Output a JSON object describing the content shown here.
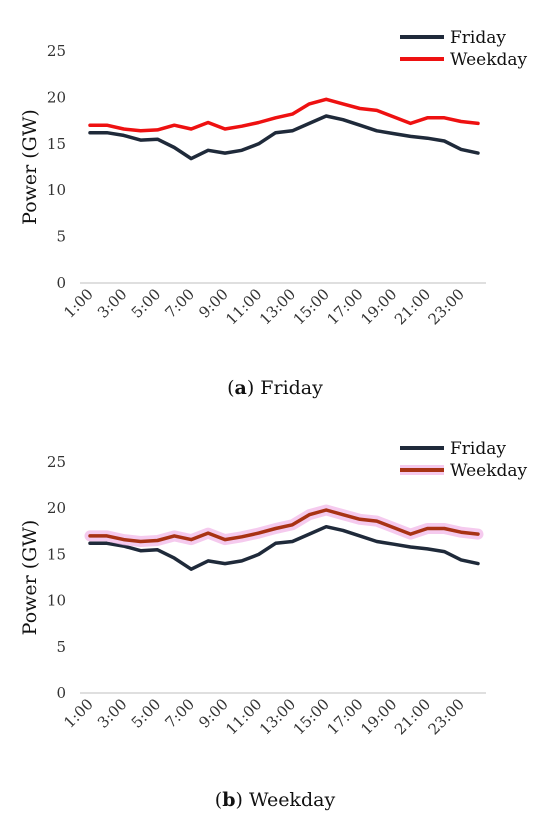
{
  "chart_data": [
    {
      "type": "line",
      "caption_letter": "a",
      "caption_text": "Friday",
      "ylabel": "Power (GW)",
      "ylim": [
        0,
        25
      ],
      "yticks": [
        0,
        5,
        10,
        15,
        20,
        25
      ],
      "grid": false,
      "legend": "top-right",
      "x": [
        "1:00",
        "2:00",
        "3:00",
        "4:00",
        "5:00",
        "6:00",
        "7:00",
        "8:00",
        "9:00",
        "10:00",
        "11:00",
        "12:00",
        "13:00",
        "14:00",
        "15:00",
        "16:00",
        "17:00",
        "18:00",
        "19:00",
        "20:00",
        "21:00",
        "22:00",
        "23:00",
        "24:00"
      ],
      "xtick_labels": [
        "1:00",
        "3:00",
        "5:00",
        "7:00",
        "9:00",
        "11:00",
        "13:00",
        "15:00",
        "17:00",
        "19:00",
        "21:00",
        "23:00"
      ],
      "series": [
        {
          "name": "Friday",
          "color": "#1f2a3a",
          "highlight": false,
          "values": [
            16.2,
            16.2,
            15.9,
            15.4,
            15.5,
            14.6,
            13.4,
            14.3,
            14.0,
            14.3,
            15.0,
            16.2,
            16.4,
            17.2,
            18.0,
            17.6,
            17.0,
            16.4,
            16.1,
            15.8,
            15.6,
            15.3,
            14.4,
            14.0
          ]
        },
        {
          "name": "Weekday",
          "color": "#ee1111",
          "highlight": false,
          "values": [
            17.0,
            17.0,
            16.6,
            16.4,
            16.5,
            17.0,
            16.6,
            17.3,
            16.6,
            16.9,
            17.3,
            17.8,
            18.2,
            19.3,
            19.8,
            19.3,
            18.8,
            18.6,
            17.9,
            17.2,
            17.8,
            17.8,
            17.4,
            17.2
          ]
        }
      ]
    },
    {
      "type": "line",
      "caption_letter": "b",
      "caption_text": "Weekday",
      "ylabel": "Power (GW)",
      "ylim": [
        0,
        25
      ],
      "yticks": [
        0,
        5,
        10,
        15,
        20,
        25
      ],
      "grid": false,
      "legend": "top-right",
      "x": [
        "1:00",
        "2:00",
        "3:00",
        "4:00",
        "5:00",
        "6:00",
        "7:00",
        "8:00",
        "9:00",
        "10:00",
        "11:00",
        "12:00",
        "13:00",
        "14:00",
        "15:00",
        "16:00",
        "17:00",
        "18:00",
        "19:00",
        "20:00",
        "21:00",
        "22:00",
        "23:00",
        "24:00"
      ],
      "xtick_labels": [
        "1:00",
        "3:00",
        "5:00",
        "7:00",
        "9:00",
        "11:00",
        "13:00",
        "15:00",
        "17:00",
        "19:00",
        "21:00",
        "23:00"
      ],
      "series": [
        {
          "name": "Friday",
          "color": "#1f2a3a",
          "highlight": false,
          "values": [
            16.2,
            16.2,
            15.9,
            15.4,
            15.5,
            14.6,
            13.4,
            14.3,
            14.0,
            14.3,
            15.0,
            16.2,
            16.4,
            17.2,
            18.0,
            17.6,
            17.0,
            16.4,
            16.1,
            15.8,
            15.6,
            15.3,
            14.4,
            14.0
          ]
        },
        {
          "name": "Weekday",
          "color": "#a83214",
          "highlight": true,
          "highlight_color": "#f2b8e8",
          "values": [
            17.0,
            17.0,
            16.6,
            16.4,
            16.5,
            17.0,
            16.6,
            17.3,
            16.6,
            16.9,
            17.3,
            17.8,
            18.2,
            19.3,
            19.8,
            19.3,
            18.8,
            18.6,
            17.9,
            17.2,
            17.8,
            17.8,
            17.4,
            17.2
          ]
        }
      ]
    }
  ]
}
